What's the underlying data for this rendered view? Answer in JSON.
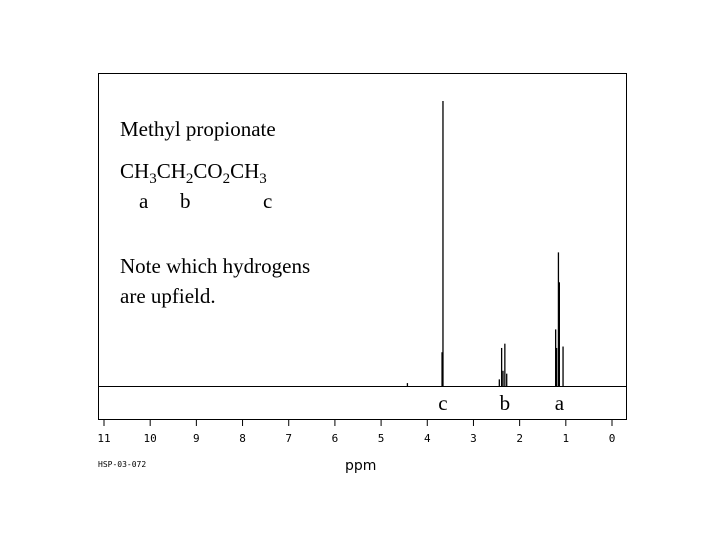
{
  "chart_data": {
    "type": "line",
    "title": "Methyl propionate",
    "formula": [
      {
        "text": "CH",
        "sub": "3"
      },
      {
        "text": "CH",
        "sub": "2"
      },
      {
        "text": "CO",
        "sub": "2"
      },
      {
        "text": "CH",
        "sub": "3"
      }
    ],
    "group_labels": [
      {
        "label": "a",
        "under": "CH3 (first)"
      },
      {
        "label": "b",
        "under": "CH2"
      },
      {
        "label": "c",
        "under": "CH3 (ester)"
      }
    ],
    "note_lines": [
      "Note which hydrogens",
      "are upfield."
    ],
    "xlabel": "ppm",
    "xlim": [
      11,
      0
    ],
    "x_reversed": true,
    "xticks": [
      11,
      10,
      9,
      8,
      7,
      6,
      5,
      4,
      3,
      2,
      1,
      0
    ],
    "ylim": [
      0,
      1
    ],
    "grid": false,
    "footer_code": "HSP-03-072",
    "peak_labels": [
      {
        "label": "c",
        "ppm": 3.66
      },
      {
        "label": "b",
        "ppm": 2.32
      },
      {
        "label": "a",
        "ppm": 1.14
      }
    ],
    "peaks": [
      {
        "ppm": 4.43,
        "height": 0.012,
        "group": ""
      },
      {
        "ppm": 3.68,
        "height": 0.12,
        "group": "c"
      },
      {
        "ppm": 3.66,
        "height": 1.0,
        "group": "c"
      },
      {
        "ppm": 2.44,
        "height": 0.025,
        "group": "b"
      },
      {
        "ppm": 2.39,
        "height": 0.135,
        "group": "b"
      },
      {
        "ppm": 2.36,
        "height": 0.055,
        "group": "b"
      },
      {
        "ppm": 2.32,
        "height": 0.15,
        "group": "b"
      },
      {
        "ppm": 2.28,
        "height": 0.045,
        "group": "b"
      },
      {
        "ppm": 1.22,
        "height": 0.2,
        "group": "a"
      },
      {
        "ppm": 1.2,
        "height": 0.135,
        "group": "a"
      },
      {
        "ppm": 1.16,
        "height": 0.47,
        "group": "a"
      },
      {
        "ppm": 1.14,
        "height": 0.365,
        "group": "a"
      },
      {
        "ppm": 1.06,
        "height": 0.14,
        "group": "a"
      }
    ]
  }
}
